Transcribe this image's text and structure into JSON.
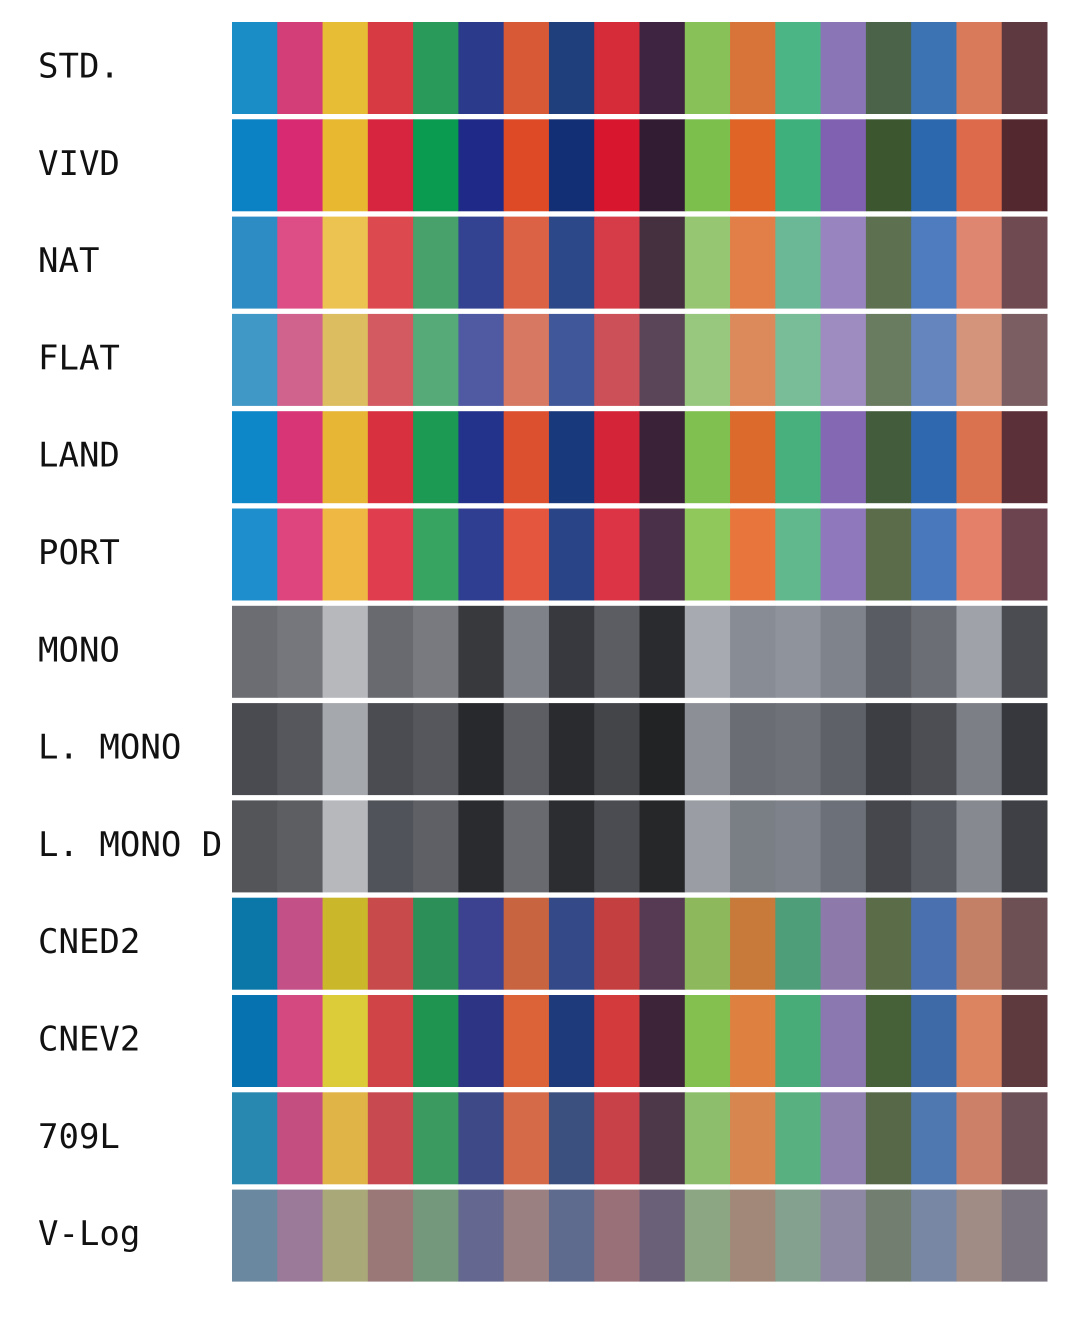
{
  "rows": [
    {
      "label": "STD.",
      "colors": [
        "#1a8cc6",
        "#d33d78",
        "#e6bd35",
        "#d83a44",
        "#2a9a5b",
        "#2c3a8c",
        "#d85936",
        "#1f3f7c",
        "#d62c3a",
        "#3e2440",
        "#87c158",
        "#d8733a",
        "#4bb585",
        "#8a76b6",
        "#4b6449",
        "#3c73b3",
        "#d97a5b",
        "#5e3a40"
      ]
    },
    {
      "label": "VIVD",
      "colors": [
        "#0a82c4",
        "#d82a72",
        "#e8b830",
        "#d8253f",
        "#0a9a50",
        "#1f2a88",
        "#df4a26",
        "#122e74",
        "#d8162e",
        "#321c34",
        "#7cbf4c",
        "#e06426",
        "#3db07c",
        "#8060b0",
        "#3c5730",
        "#2c68ae",
        "#de6a4c",
        "#54282f"
      ]
    },
    {
      "label": "NAT",
      "colors": [
        "#2e8cc4",
        "#dd4e86",
        "#ecc350",
        "#dc4a50",
        "#48a06a",
        "#334391",
        "#dc6246",
        "#2c4888",
        "#d63c48",
        "#44303f",
        "#97c673",
        "#e27e47",
        "#6ab896",
        "#9884be",
        "#5d7050",
        "#4f7bbf",
        "#de8670",
        "#6f4a50"
      ]
    },
    {
      "label": "FLAT",
      "colors": [
        "#4098c6",
        "#d0628e",
        "#dcbe60",
        "#d25a60",
        "#55aa78",
        "#4f5aa2",
        "#d67862",
        "#40589a",
        "#cc5058",
        "#5a4558",
        "#98c87e",
        "#dc8a5c",
        "#78bc98",
        "#9e8cc0",
        "#6a7c60",
        "#6485bd",
        "#d4947c",
        "#7a5e62"
      ]
    },
    {
      "label": "LAND",
      "colors": [
        "#0d87c8",
        "#d83577",
        "#e8b635",
        "#d8303f",
        "#1c9a54",
        "#23328a",
        "#dc5030",
        "#183a7c",
        "#d42438",
        "#3a2238",
        "#80c050",
        "#dc6a2c",
        "#48b07c",
        "#8468b4",
        "#435c3c",
        "#3068b0",
        "#da7250",
        "#5c3038"
      ]
    },
    {
      "label": "PORT",
      "colors": [
        "#1e8ecc",
        "#de447e",
        "#eeb842",
        "#e03e4e",
        "#38a462",
        "#2f3e90",
        "#e4573e",
        "#2a4488",
        "#dc3444",
        "#4a3048",
        "#90c85c",
        "#e8763c",
        "#60b88c",
        "#9078bc",
        "#5a6c4a",
        "#4a78bc",
        "#e4806a",
        "#6c4450"
      ]
    },
    {
      "label": "MONO",
      "colors": [
        "#6c6d72",
        "#75777c",
        "#b6b8bc",
        "#686a6f",
        "#787a80",
        "#38393d",
        "#7f8288",
        "#38393e",
        "#5b5d62",
        "#2a2b2e",
        "#a7aab0",
        "#888c94",
        "#8f939b",
        "#7f838b",
        "#595c62",
        "#6b6e74",
        "#9fa2a8",
        "#4a4c52"
      ]
    },
    {
      "label": "L. MONO",
      "colors": [
        "#4a4b50",
        "#55575c",
        "#a5a8ad",
        "#4a4c52",
        "#55575c",
        "#28292c",
        "#5c5e64",
        "#2a2b2e",
        "#434549",
        "#222325",
        "#8c9096",
        "#6a6d74",
        "#6e7178",
        "#5e6168",
        "#3c3e44",
        "#4c4e54",
        "#7c8086",
        "#36383d"
      ]
    },
    {
      "label": "L. MONO D",
      "colors": [
        "#545559",
        "#5c5e62",
        "#b6b8bc",
        "#50535a",
        "#5e6066",
        "#2a2b2e",
        "#686a70",
        "#2c2d30",
        "#4a4c52",
        "#262729",
        "#9a9ea4",
        "#7a7e85",
        "#7e828a",
        "#6c7078",
        "#45474d",
        "#595c62",
        "#868990",
        "#3e4046"
      ]
    },
    {
      "label": "CNED2",
      "colors": [
        "#0b77a8",
        "#c45088",
        "#cbb82a",
        "#c84a4a",
        "#2d8f58",
        "#3d4290",
        "#c86440",
        "#344a88",
        "#c44040",
        "#563a54",
        "#8eb85c",
        "#c87a3a",
        "#4e9e7a",
        "#8e7aaa",
        "#5a6c48",
        "#4a70b0",
        "#c48066",
        "#6c5054"
      ]
    },
    {
      "label": "CNEV2",
      "colors": [
        "#0772b0",
        "#d44a80",
        "#dccc3a",
        "#d04448",
        "#1e9450",
        "#2d3484",
        "#dc6238",
        "#1e3a7a",
        "#d23a3c",
        "#3e2438",
        "#84c050",
        "#de8040",
        "#48ac78",
        "#8c78b0",
        "#466038",
        "#3e6aa8",
        "#dc8460",
        "#5e3a3e"
      ]
    },
    {
      "label": "709L",
      "colors": [
        "#2888b0",
        "#c44e80",
        "#e0b446",
        "#c84a50",
        "#3a9a60",
        "#3e4a88",
        "#d46a48",
        "#3c5080",
        "#c84048",
        "#4c3848",
        "#8cbe6c",
        "#d88650",
        "#58b080",
        "#9080b0",
        "#566848",
        "#5078b0",
        "#cc8068",
        "#6c5258"
      ]
    },
    {
      "label": "V-Log",
      "colors": [
        "#6a88a0",
        "#9a7a98",
        "#a8a878",
        "#9a7878",
        "#74987c",
        "#646890",
        "#9a8080",
        "#5e6a8e",
        "#9a7078",
        "#6a6078",
        "#8ca684",
        "#a28878",
        "#84a08e",
        "#8e88a4",
        "#727e70",
        "#7888a4",
        "#a08c84",
        "#7a7480"
      ]
    }
  ]
}
